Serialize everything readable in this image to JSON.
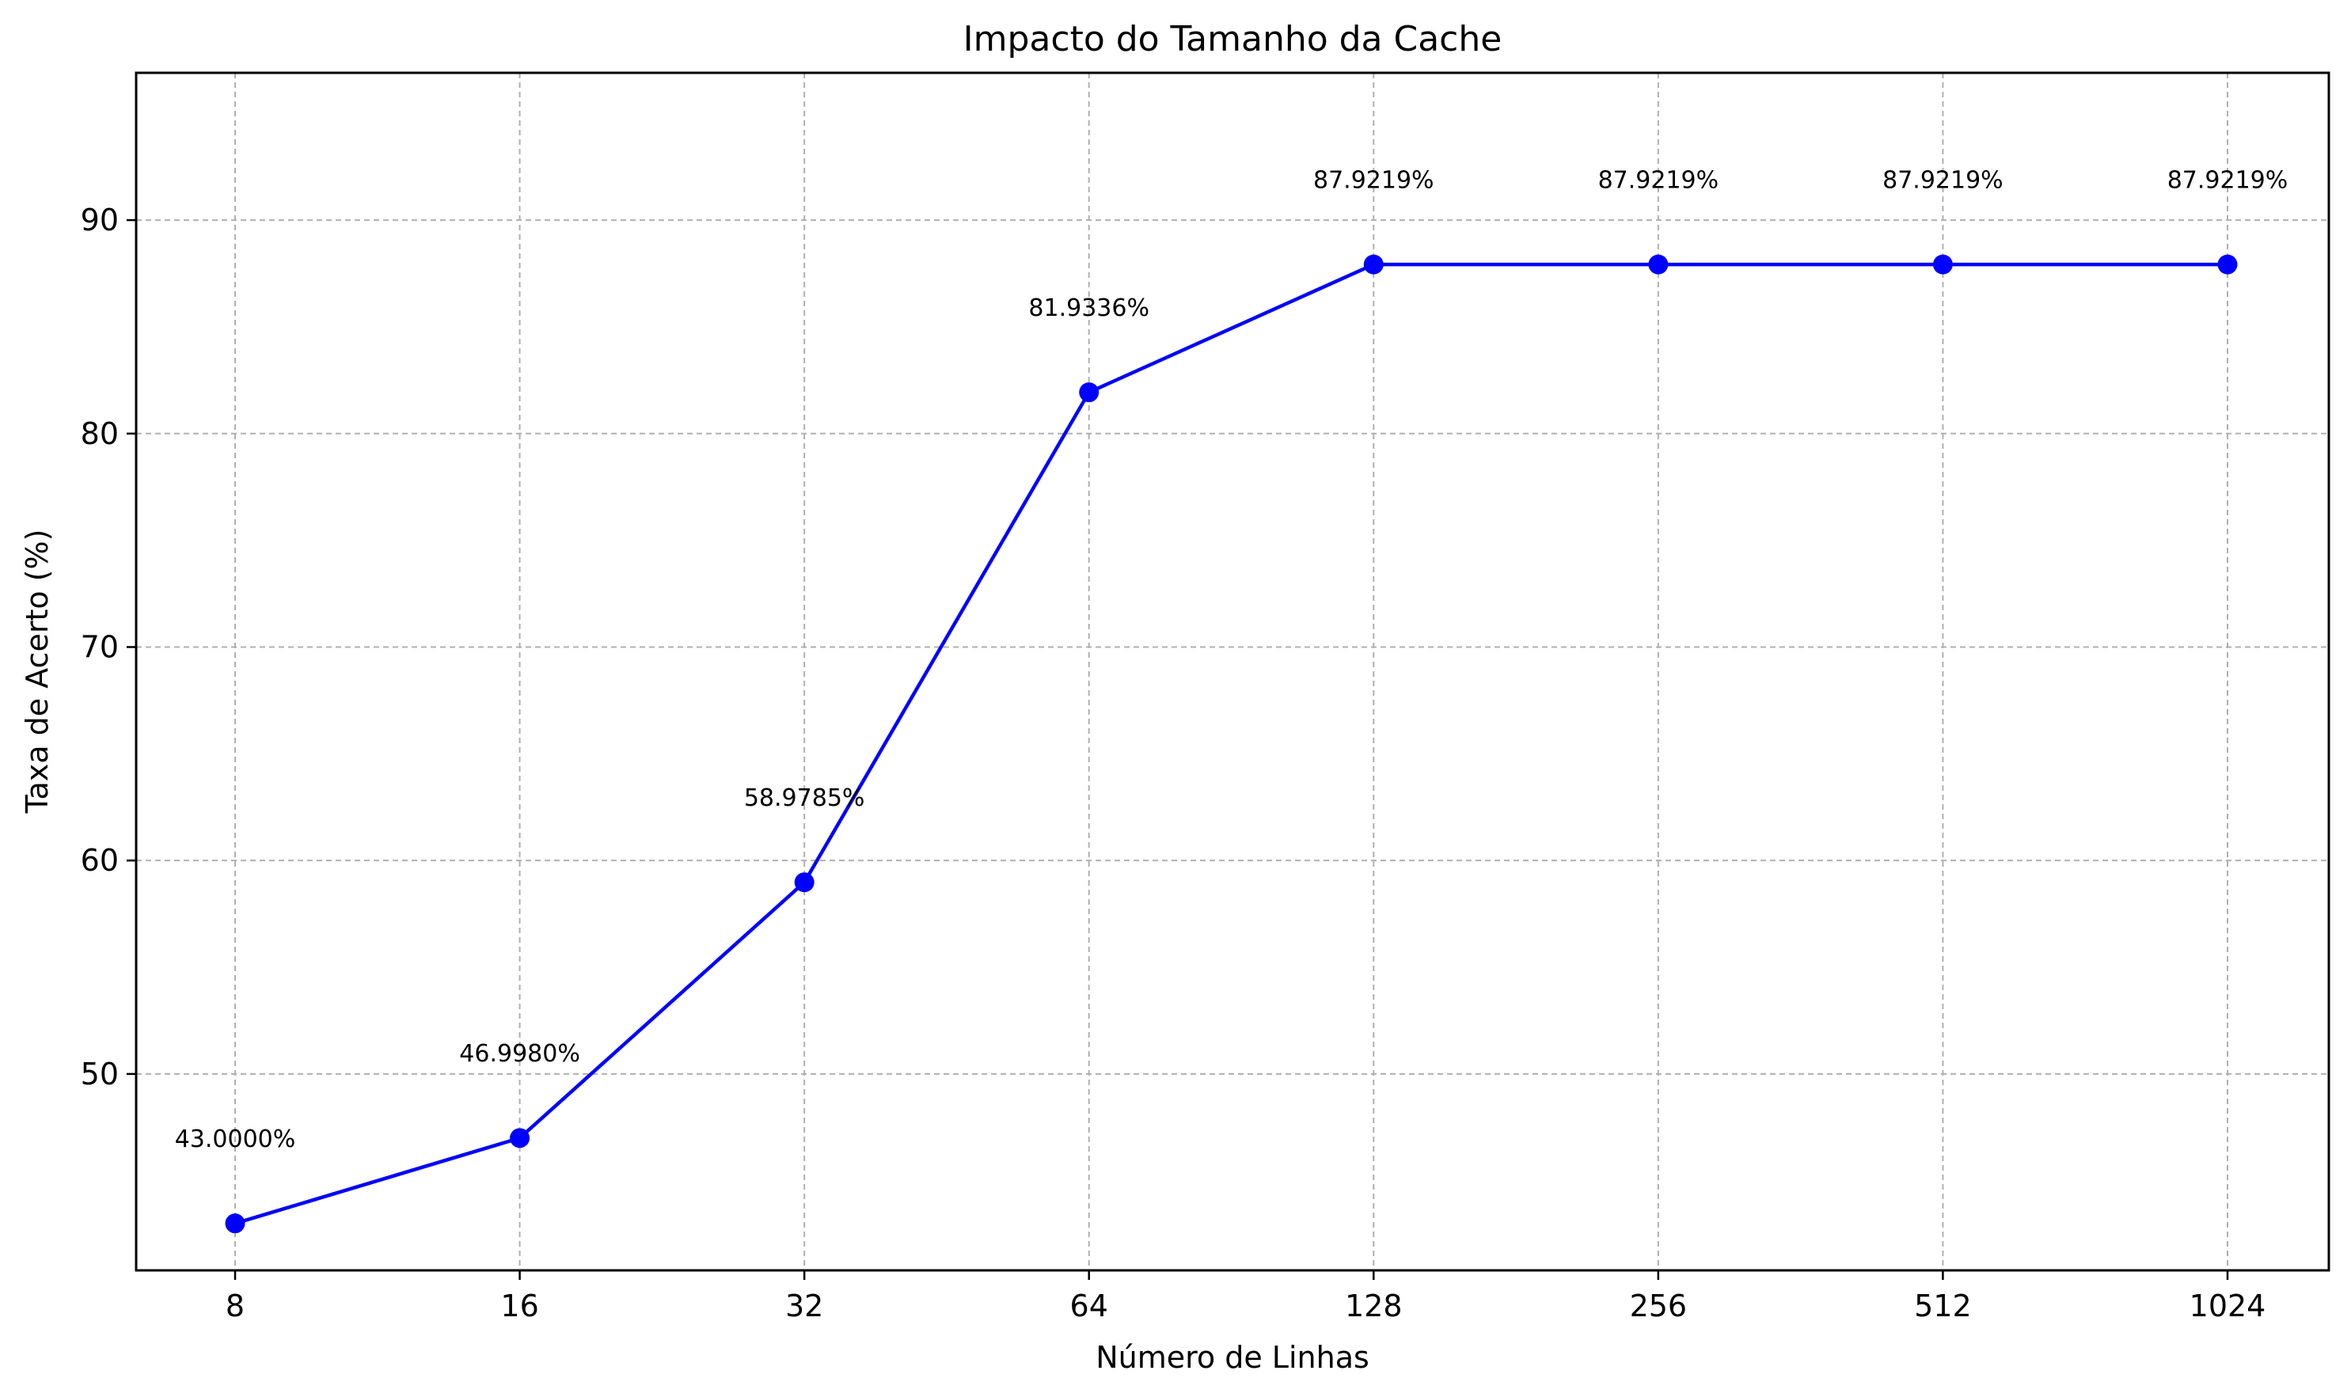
{
  "chart_data": {
    "type": "line",
    "title": "Impacto do Tamanho da Cache",
    "xlabel": "Número de Linhas",
    "ylabel": "Taxa de Acerto (%)",
    "x": [
      "8",
      "16",
      "32",
      "64",
      "128",
      "256",
      "512",
      "1024"
    ],
    "series": [
      {
        "values": [
          43.0,
          46.998,
          58.9785,
          81.9336,
          87.9219,
          87.9219,
          87.9219,
          87.9219
        ],
        "data_labels": [
          "43.0000%",
          "46.9980%",
          "58.9785%",
          "81.9336%",
          "87.9219%",
          "87.9219%",
          "87.9219%",
          "87.9219%"
        ],
        "color": "#0000ff",
        "marker": "circle"
      }
    ],
    "ylim": [
      40.8,
      96.9
    ],
    "yticks": [
      50,
      60,
      70,
      80,
      90
    ],
    "grid": true,
    "legend": "none"
  }
}
